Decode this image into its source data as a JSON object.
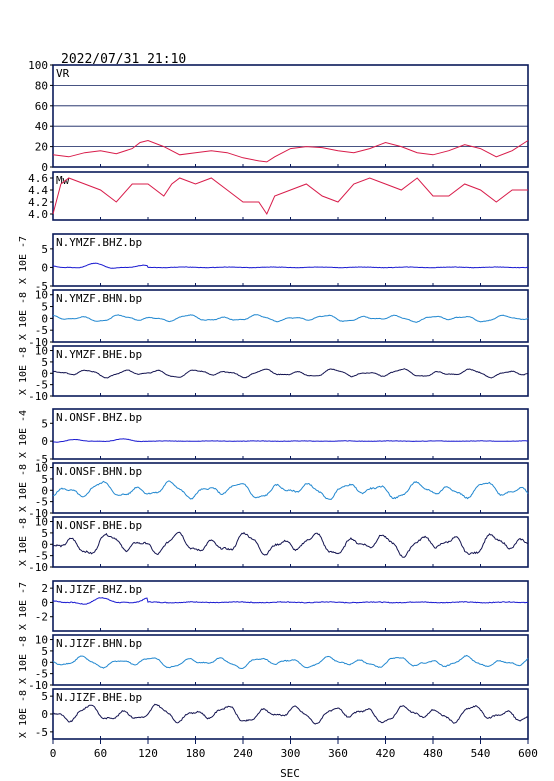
{
  "header": {
    "timestamp": "2022/07/31 21:10"
  },
  "colors": {
    "frame": "#0a1a5a",
    "vr_mw": "#d81c4a",
    "bhz": "#1a1ad0",
    "bhn": "#2288d0",
    "bhe": "#141450",
    "tick_text": "#000000"
  },
  "chart_data": {
    "type": "line",
    "x_axis": {
      "label": "SEC",
      "range": [
        0,
        600
      ],
      "ticks": [
        "0",
        "60",
        "120",
        "180",
        "240",
        "300",
        "360",
        "420",
        "480",
        "540",
        "600"
      ]
    },
    "panels": [
      {
        "id": "vr",
        "label": "VR",
        "kind": "vr",
        "ylim": [
          0,
          100
        ],
        "yticks": [
          "0",
          "20",
          "40",
          "60",
          "80",
          "100"
        ],
        "ylabel": "",
        "grid": true,
        "x": [
          0,
          20,
          40,
          60,
          80,
          100,
          110,
          120,
          140,
          160,
          180,
          200,
          220,
          240,
          260,
          270,
          280,
          300,
          320,
          340,
          360,
          380,
          400,
          420,
          440,
          460,
          480,
          500,
          520,
          540,
          560,
          580,
          600
        ],
        "y": [
          12,
          10,
          14,
          16,
          13,
          18,
          24,
          26,
          20,
          12,
          14,
          16,
          14,
          9,
          6,
          5,
          10,
          18,
          20,
          19,
          16,
          14,
          18,
          24,
          20,
          14,
          12,
          16,
          22,
          18,
          10,
          16,
          26
        ]
      },
      {
        "id": "mw",
        "label": "Mw",
        "kind": "mw",
        "ylim": [
          3.9,
          4.7
        ],
        "yticks": [
          "4.0",
          "4.2",
          "4.4",
          "4.6"
        ],
        "ylabel": "",
        "grid": false,
        "x": [
          0,
          10,
          20,
          40,
          60,
          80,
          100,
          120,
          140,
          150,
          160,
          180,
          200,
          220,
          240,
          260,
          270,
          280,
          300,
          320,
          340,
          360,
          380,
          400,
          420,
          440,
          460,
          480,
          500,
          520,
          540,
          560,
          580,
          600
        ],
        "y": [
          4.0,
          4.5,
          4.6,
          4.5,
          4.4,
          4.2,
          4.5,
          4.5,
          4.3,
          4.5,
          4.6,
          4.5,
          4.6,
          4.4,
          4.2,
          4.2,
          4.0,
          4.3,
          4.4,
          4.5,
          4.3,
          4.2,
          4.5,
          4.6,
          4.5,
          4.4,
          4.6,
          4.3,
          4.3,
          4.5,
          4.4,
          4.2,
          4.4,
          4.4
        ]
      },
      {
        "id": "ymzf-bhz",
        "label": "N.YMZF.BHZ.bp",
        "kind": "bhz",
        "ylim": [
          -5,
          9
        ],
        "yticks": [
          "-5",
          "0",
          "5"
        ],
        "ylabel": "X 10E -7",
        "amp": 0.18,
        "seed": 1
      },
      {
        "id": "ymzf-bhn",
        "label": "N.YMZF.BHN.bp",
        "kind": "bhn",
        "ylim": [
          -10,
          12
        ],
        "yticks": [
          "-10",
          "-5",
          "0",
          "5",
          "10"
        ],
        "ylabel": "X 10E -8",
        "amp": 0.7,
        "seed": 2
      },
      {
        "id": "ymzf-bhe",
        "label": "N.YMZF.BHE.bp",
        "kind": "bhe",
        "ylim": [
          -10,
          12
        ],
        "yticks": [
          "-10",
          "-5",
          "0",
          "5",
          "10"
        ],
        "ylabel": "X 10E -8",
        "amp": 0.9,
        "seed": 3
      },
      {
        "id": "onsf-bhz",
        "label": "N.ONSF.BHZ.bp",
        "kind": "bhz",
        "ylim": [
          -5,
          9
        ],
        "yticks": [
          "-5",
          "0",
          "5"
        ],
        "ylabel": "X 10E -4",
        "amp": 0.1,
        "seed": 4
      },
      {
        "id": "onsf-bhn",
        "label": "N.ONSF.BHN.bp",
        "kind": "bhn",
        "ylim": [
          -10,
          12
        ],
        "yticks": [
          "-10",
          "-5",
          "0",
          "5",
          "10"
        ],
        "ylabel": "X 10E -8",
        "amp": 1.8,
        "seed": 5
      },
      {
        "id": "onsf-bhe",
        "label": "N.ONSF.BHE.bp",
        "kind": "bhe",
        "ylim": [
          -10,
          12
        ],
        "yticks": [
          "-10",
          "-5",
          "0",
          "5",
          "10"
        ],
        "ylabel": "X 10E -8",
        "amp": 2.4,
        "seed": 6
      },
      {
        "id": "jizf-bhz",
        "label": "N.JIZF.BHZ.bp",
        "kind": "bhz",
        "ylim": [
          -4,
          3
        ],
        "yticks": [
          "-2",
          "0",
          "2"
        ],
        "ylabel": "X 10E -7",
        "amp": 0.12,
        "seed": 7
      },
      {
        "id": "jizf-bhn",
        "label": "N.JIZF.BHN.bp",
        "kind": "bhn",
        "ylim": [
          -10,
          12
        ],
        "yticks": [
          "-10",
          "-5",
          "0",
          "5",
          "10"
        ],
        "ylabel": "X 10E -8",
        "amp": 1.2,
        "seed": 8
      },
      {
        "id": "jizf-bhe",
        "label": "N.JIZF.BHE.bp",
        "kind": "bhe",
        "ylim": [
          -7,
          7
        ],
        "yticks": [
          "-5",
          "0",
          "5"
        ],
        "ylabel": "X 10E -8",
        "amp": 1.2,
        "seed": 9
      }
    ]
  }
}
